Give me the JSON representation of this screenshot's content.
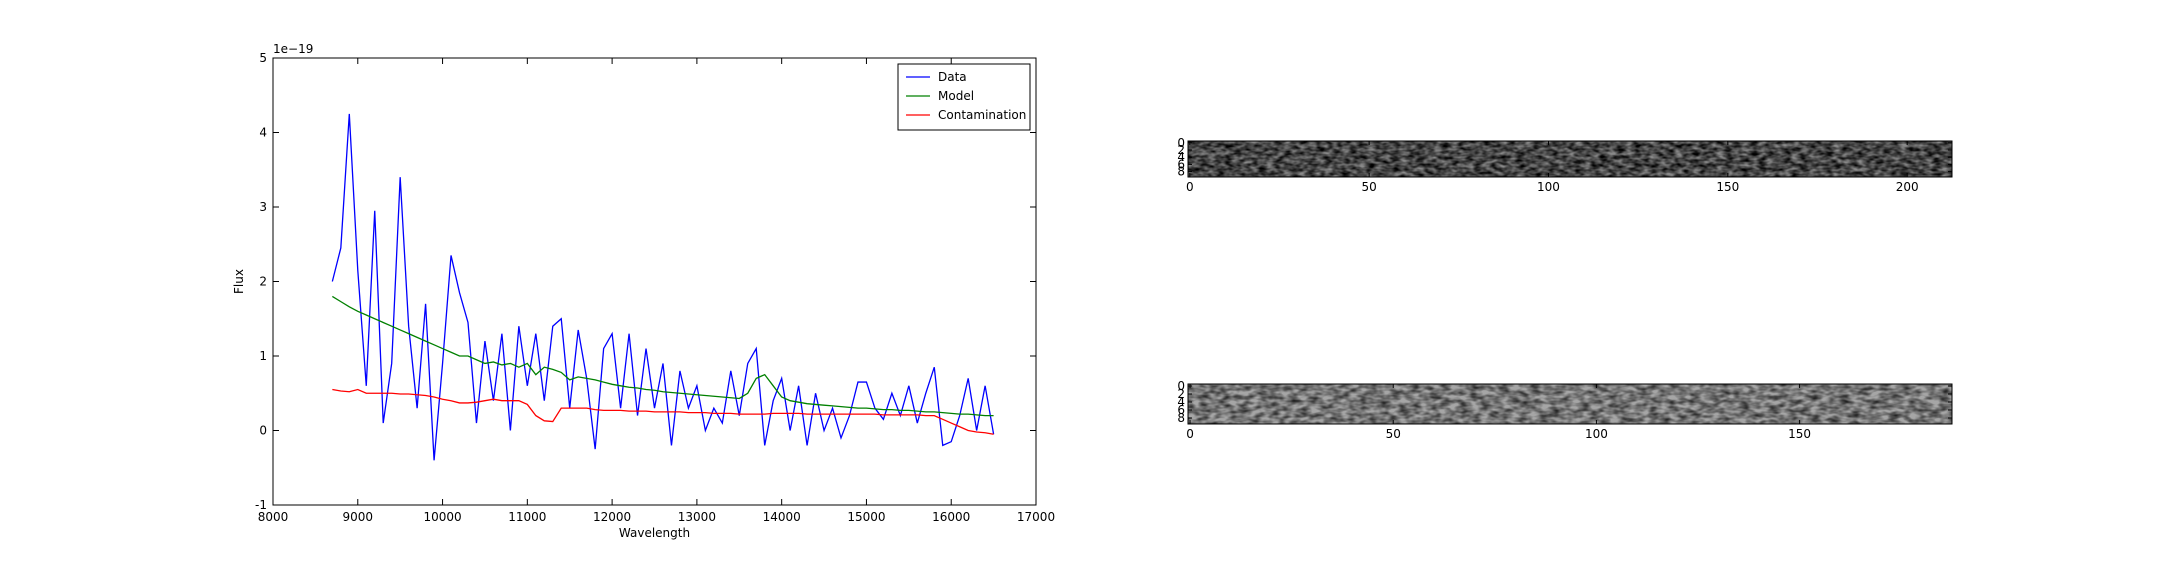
{
  "chart_data": [
    {
      "type": "line",
      "xlabel": "Wavelength",
      "ylabel": "Flux",
      "offset_text": "1e−19",
      "xlim": [
        8000,
        17000
      ],
      "xticks": [
        8000,
        9000,
        10000,
        11000,
        12000,
        13000,
        14000,
        15000,
        16000,
        17000
      ],
      "ylim": [
        -1,
        5
      ],
      "yticks": [
        -1,
        0,
        1,
        2,
        3,
        4,
        5
      ],
      "legend": "upper right",
      "x": [
        8700,
        8800,
        8900,
        9000,
        9100,
        9200,
        9300,
        9400,
        9500,
        9600,
        9700,
        9800,
        9900,
        10000,
        10100,
        10200,
        10300,
        10400,
        10500,
        10600,
        10700,
        10800,
        10900,
        11000,
        11100,
        11200,
        11300,
        11400,
        11500,
        11600,
        11700,
        11800,
        11900,
        12000,
        12100,
        12200,
        12300,
        12400,
        12500,
        12600,
        12700,
        12800,
        12900,
        13000,
        13100,
        13200,
        13300,
        13400,
        13500,
        13600,
        13700,
        13800,
        13900,
        14000,
        14100,
        14200,
        14300,
        14400,
        14500,
        14600,
        14700,
        14800,
        14900,
        15000,
        15100,
        15200,
        15300,
        15400,
        15500,
        15600,
        15700,
        15800,
        15900,
        16000,
        16100,
        16200,
        16300,
        16400,
        16500
      ],
      "series": [
        {
          "name": "Data",
          "color": "#0000ff",
          "values": [
            2.0,
            2.45,
            4.25,
            2.15,
            0.6,
            2.95,
            0.1,
            0.9,
            3.4,
            1.4,
            0.3,
            1.7,
            -0.4,
            0.9,
            2.35,
            1.85,
            1.45,
            0.1,
            1.2,
            0.4,
            1.3,
            0,
            1.4,
            0.6,
            1.3,
            0.4,
            1.4,
            1.5,
            0.3,
            1.35,
            0.7,
            -0.25,
            1.1,
            1.3,
            0.3,
            1.3,
            0.2,
            1.1,
            0.3,
            0.9,
            -0.2,
            0.8,
            0.3,
            0.6,
            0,
            0.3,
            0.1,
            0.8,
            0.2,
            0.9,
            1.1,
            -0.2,
            0.4,
            0.7,
            0,
            0.6,
            -0.2,
            0.5,
            0,
            0.3,
            -0.1,
            0.2,
            0.65,
            0.65,
            0.3,
            0.15,
            0.5,
            0.2,
            0.6,
            0.1,
            0.5,
            0.85,
            -0.2,
            -0.15,
            0.2,
            0.7,
            0,
            0.6,
            -0.05
          ]
        },
        {
          "name": "Model",
          "color": "#008000",
          "values": [
            1.8,
            1.73,
            1.66,
            1.6,
            1.55,
            1.5,
            1.45,
            1.4,
            1.35,
            1.3,
            1.25,
            1.2,
            1.15,
            1.1,
            1.05,
            1.0,
            1.0,
            0.95,
            0.9,
            0.92,
            0.88,
            0.9,
            0.85,
            0.9,
            0.75,
            0.85,
            0.82,
            0.78,
            0.68,
            0.72,
            0.7,
            0.68,
            0.65,
            0.62,
            0.6,
            0.58,
            0.57,
            0.55,
            0.54,
            0.52,
            0.51,
            0.5,
            0.49,
            0.48,
            0.47,
            0.46,
            0.45,
            0.44,
            0.43,
            0.5,
            0.7,
            0.75,
            0.6,
            0.45,
            0.4,
            0.38,
            0.36,
            0.35,
            0.34,
            0.33,
            0.32,
            0.31,
            0.3,
            0.3,
            0.29,
            0.28,
            0.28,
            0.27,
            0.27,
            0.26,
            0.25,
            0.25,
            0.24,
            0.23,
            0.22,
            0.22,
            0.21,
            0.2,
            0.2
          ]
        },
        {
          "name": "Contamination",
          "color": "#ff0000",
          "values": [
            0.55,
            0.53,
            0.52,
            0.55,
            0.5,
            0.5,
            0.5,
            0.5,
            0.49,
            0.49,
            0.48,
            0.47,
            0.45,
            0.42,
            0.4,
            0.37,
            0.37,
            0.38,
            0.4,
            0.42,
            0.4,
            0.4,
            0.4,
            0.35,
            0.2,
            0.13,
            0.12,
            0.3,
            0.3,
            0.3,
            0.3,
            0.28,
            0.27,
            0.27,
            0.27,
            0.26,
            0.26,
            0.26,
            0.25,
            0.25,
            0.25,
            0.25,
            0.24,
            0.24,
            0.24,
            0.23,
            0.23,
            0.23,
            0.22,
            0.22,
            0.22,
            0.22,
            0.23,
            0.23,
            0.23,
            0.23,
            0.22,
            0.22,
            0.22,
            0.22,
            0.22,
            0.22,
            0.22,
            0.22,
            0.22,
            0.21,
            0.21,
            0.21,
            0.21,
            0.21,
            0.2,
            0.2,
            0.15,
            0.1,
            0.05,
            0,
            -0.02,
            -0.03,
            -0.05
          ]
        }
      ]
    },
    {
      "type": "image",
      "xlim": [
        -0.5,
        212.5
      ],
      "xticks": [
        0,
        50,
        100,
        150,
        200
      ],
      "ylim": [
        9.5,
        -0.5
      ],
      "yticks": [
        0,
        2,
        4,
        6,
        8
      ]
    },
    {
      "type": "image",
      "xlim": [
        -0.5,
        187.5
      ],
      "xticks": [
        0,
        50,
        100,
        150
      ],
      "ylim": [
        9.5,
        -0.5
      ],
      "yticks": [
        0,
        2,
        4,
        6,
        8
      ]
    }
  ]
}
